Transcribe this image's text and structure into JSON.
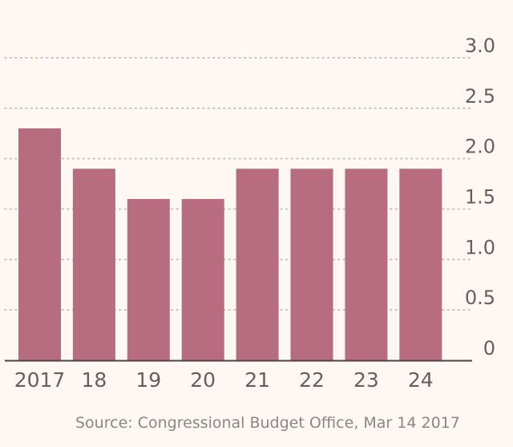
{
  "chart_data": {
    "type": "bar",
    "categories": [
      "2017",
      "18",
      "19",
      "20",
      "21",
      "22",
      "23",
      "24"
    ],
    "values": [
      2.3,
      1.9,
      1.6,
      1.6,
      1.9,
      1.9,
      1.9,
      1.9
    ],
    "ylim": [
      0,
      3.0
    ],
    "yticks": [
      "0",
      "0.5",
      "1.0",
      "1.5",
      "2.0",
      "2.5",
      "3.0"
    ],
    "ytick_values": [
      0,
      0.5,
      1.0,
      1.5,
      2.0,
      2.5,
      3.0
    ],
    "grid": true,
    "y_axis_side": "right",
    "bar_color": "#b86c80",
    "grid_color": "#c9c4bf",
    "axis_color": "#4a4542"
  },
  "source": "Source: Congressional Budget Office, Mar 14 2017"
}
